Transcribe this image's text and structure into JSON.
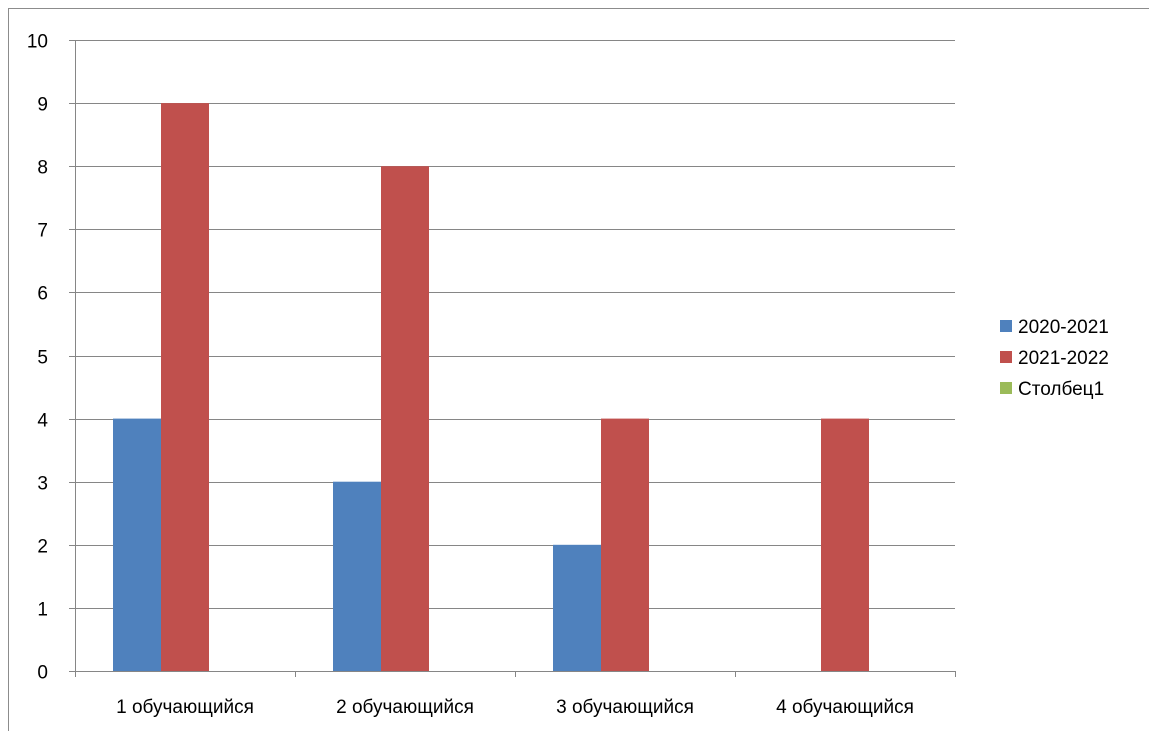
{
  "chart_data": {
    "type": "bar",
    "title": "",
    "xlabel": "",
    "ylabel": "",
    "categories": [
      "1 обучающийся",
      "2 обучающийся",
      "3 обучающийся",
      "4 обучающийся"
    ],
    "series": [
      {
        "name": "2020-2021",
        "color": "#4f81bd",
        "values": [
          4,
          3,
          2,
          0
        ]
      },
      {
        "name": "2021-2022",
        "color": "#c0504d",
        "values": [
          9,
          8,
          4,
          4
        ]
      },
      {
        "name": "Столбец1",
        "color": "#9bbb59",
        "values": [
          0,
          0,
          0,
          0
        ]
      }
    ],
    "ylim": [
      0,
      10
    ],
    "yticks": [
      0,
      1,
      2,
      3,
      4,
      5,
      6,
      7,
      8,
      9,
      10
    ],
    "grid": true,
    "legend_position": "right"
  }
}
